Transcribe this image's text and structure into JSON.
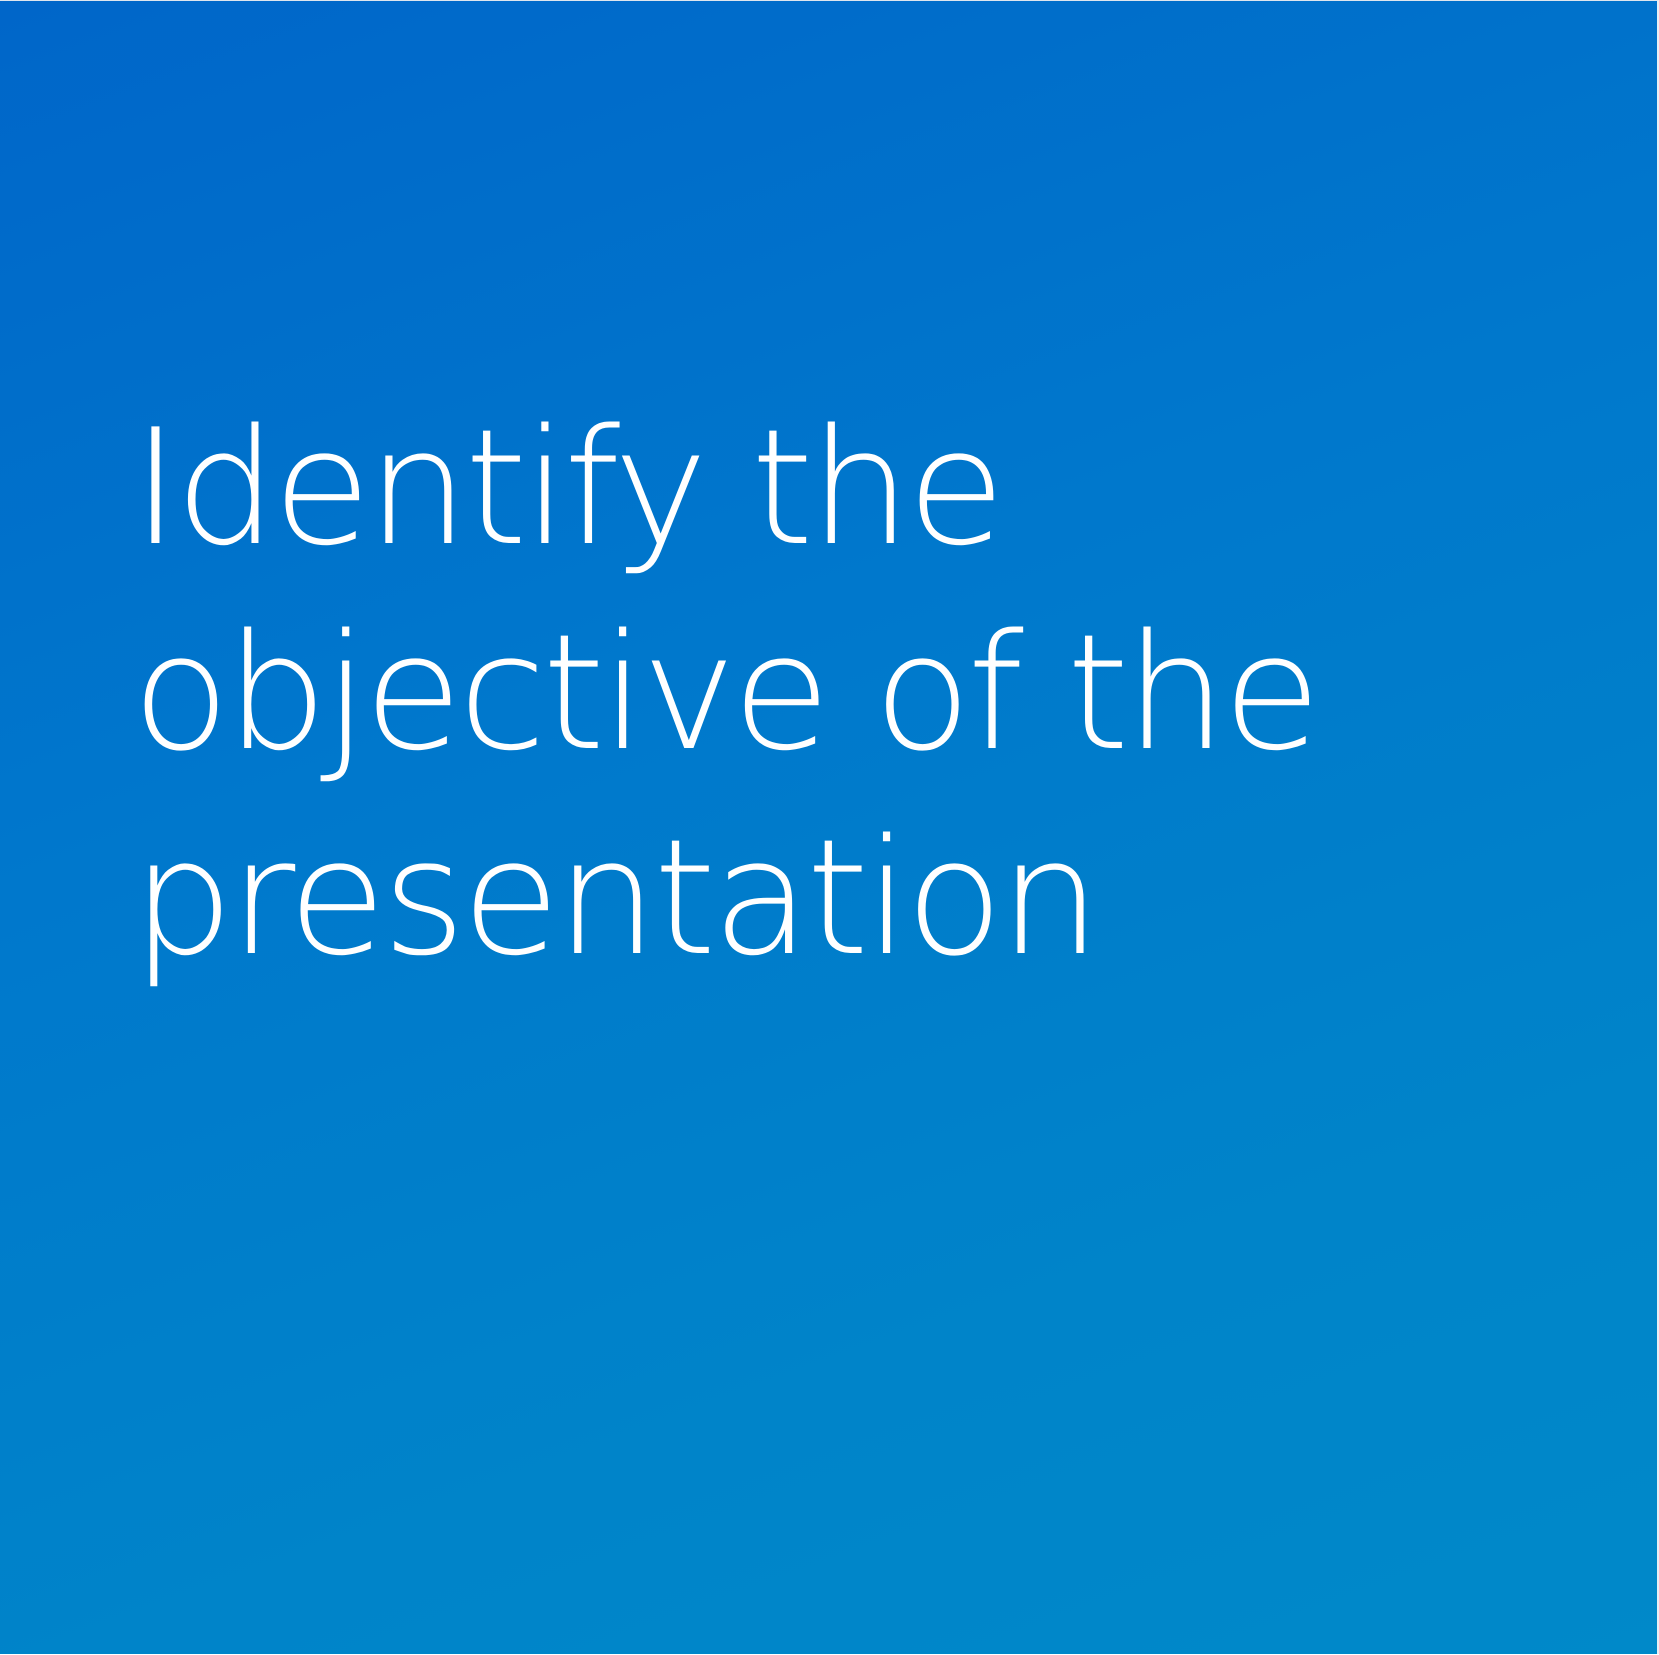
{
  "slide": {
    "background_colors": [
      "#0066c9",
      "#0089c9"
    ],
    "text_color": "#ffffff",
    "headline_lines": [
      "Identify the",
      "objective of the",
      "presentation"
    ]
  }
}
